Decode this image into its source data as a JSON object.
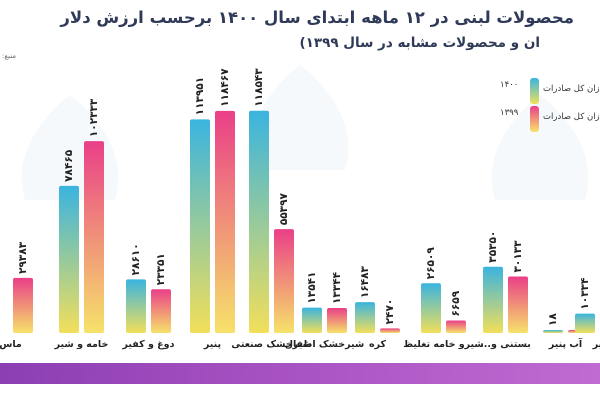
{
  "chart_data": {
    "type": "bar",
    "title": "محصولات لبنی در ۱۲ ماهه ابتدای سال ۱۴۰۰ برحسب ارزش دلار",
    "subtitle": "ان و محصولات مشابه در سال ۱۳۹۹)",
    "source_label": "منبع:",
    "categories": [
      "ماس",
      "خامه و شیر",
      "دوغ و کفیر",
      "پنیر",
      "شیرخشک صنعتی",
      "شیرخشک اطفال",
      "کره",
      "شیرو خامه تغلیظ",
      "بستنی و...",
      "آب پنیر",
      "یر"
    ],
    "series": [
      {
        "name": "1400",
        "values": [
          null,
          78465,
          28610,
          113951,
          118543,
          13541,
          16483,
          26509,
          35350,
          18,
          10334
        ],
        "labels": [
          "",
          "۷۸۴۶۵",
          "۲۸۶۱۰",
          "۱۱۳۹۵۱",
          "۱۱۸۵۴۳",
          "۱۳۵۴۱",
          "۱۶۴۸۳",
          "۲۶۵۰۹",
          "۳۵۳۵۰",
          "۱۸",
          "۱۰۳۳۴"
        ]
      },
      {
        "name": "1399",
        "values": [
          29383,
          102333,
          23351,
          118467,
          55397,
          13344,
          2470,
          6659,
          30133,
          0,
          null
        ],
        "labels": [
          "۲۹۳۸۳",
          "۱۰۲۳۳۳",
          "۲۳۳۵۱",
          "۱۱۸۴۶۷",
          "۵۵۳۹۷",
          "۱۳۳۴۴",
          "۲۴۷۰",
          "۶۶۵۹",
          "۳۰۱۳۳",
          "۰",
          ""
        ]
      }
    ],
    "legend": [
      {
        "year": "۱۴۰۰",
        "label": "زان کل صادرات",
        "color_top": "#38b6e0",
        "color_bottom": "#f1e05a"
      },
      {
        "year": "۱۳۹۹",
        "label": "زان کل صادرات",
        "color_top": "#ea3f88",
        "color_bottom": "#f8e36a"
      }
    ],
    "ylim": [
      0,
      120000
    ],
    "grid": false,
    "legend_position": "top-right",
    "colors": {
      "series_1400_top": "#3ab4df",
      "series_1400_bottom": "#f2df5a",
      "series_1399_top": "#ea3f88",
      "series_1399_bottom": "#f6e26a",
      "title": "#2f3a58",
      "footer": "#9a47bd"
    },
    "icons": [
      "milk-bottle-icon",
      "cream-icon",
      "doogh-jug-icon",
      "cheese-icon",
      "milk-powder-bowl-icon",
      "baby-formula-icon",
      "butter-icon",
      "ice-cream-icon",
      "whey-icon",
      "bowl-icon"
    ]
  }
}
